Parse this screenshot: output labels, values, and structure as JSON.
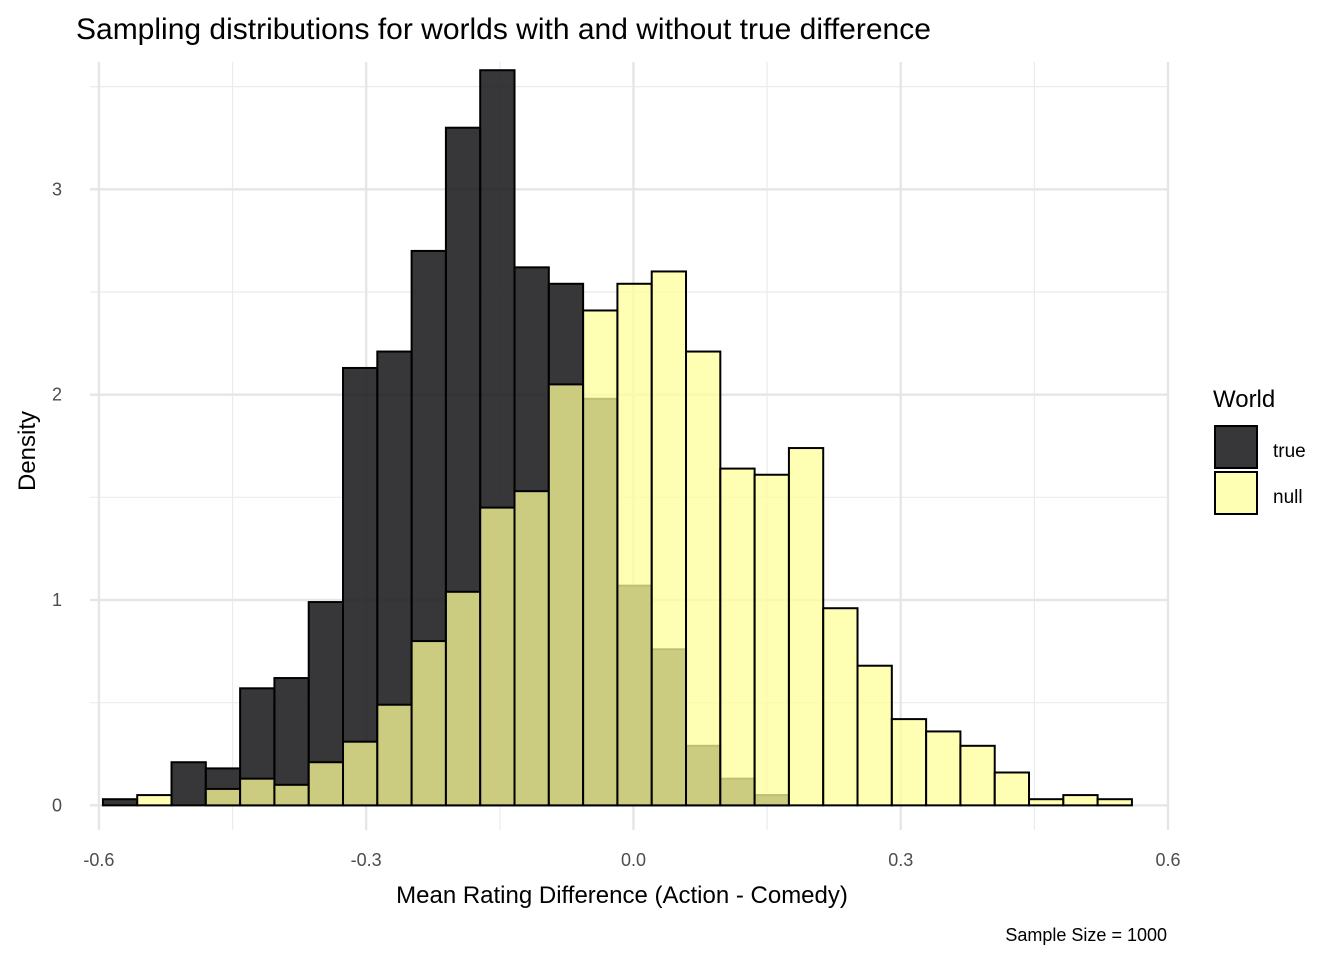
{
  "chart_data": {
    "type": "bar",
    "title": "Sampling distributions for worlds with and without true difference",
    "xlabel": "Mean Rating Difference (Action - Comedy)",
    "ylabel": "Density",
    "caption": "Sample Size = 1000",
    "xlim": [
      -0.61,
      0.6
    ],
    "ylim": [
      -0.12,
      3.62
    ],
    "x_ticks": [
      -0.6,
      -0.3,
      0.0,
      0.3,
      0.6
    ],
    "x_tick_labels": [
      "-0.6",
      "-0.3",
      "0.0",
      "0.3",
      "0.6"
    ],
    "y_ticks": [
      0,
      1,
      2,
      3
    ],
    "y_tick_labels": [
      "0",
      "1",
      "2",
      "3"
    ],
    "grid": true,
    "bin_width": 0.0385,
    "legend": {
      "title": "World",
      "position": "right",
      "entries": [
        {
          "label": "true",
          "color": "#1b1b1f"
        },
        {
          "label": "null",
          "color": "#ffff99"
        }
      ]
    },
    "bin_starts": [
      -0.5955,
      -0.557,
      -0.5185,
      -0.48,
      -0.4415,
      -0.403,
      -0.3645,
      -0.326,
      -0.2875,
      -0.249,
      -0.2105,
      -0.172,
      -0.1335,
      -0.095,
      -0.0565,
      -0.018,
      0.0205,
      0.059,
      0.0975,
      0.136,
      0.1745,
      0.213,
      0.2515,
      0.29,
      0.3285,
      0.367,
      0.4055,
      0.444,
      0.4825,
      0.521
    ],
    "series": [
      {
        "name": "true",
        "color": "#1b1b1f",
        "opacity": 0.88,
        "values": [
          0.03,
          0,
          0.21,
          0.18,
          0.57,
          0.62,
          0.99,
          2.13,
          2.21,
          2.7,
          3.3,
          3.58,
          2.62,
          2.54,
          1.98,
          1.07,
          0.76,
          0.29,
          0.13,
          0.05,
          0,
          0,
          0,
          0,
          0,
          0,
          0,
          0,
          0,
          0
        ]
      },
      {
        "name": "null",
        "color": "#ffff99",
        "opacity": 0.75,
        "values": [
          0,
          0.05,
          0,
          0.08,
          0.13,
          0.1,
          0.21,
          0.31,
          0.49,
          0.8,
          1.04,
          1.45,
          1.53,
          2.05,
          2.41,
          2.54,
          2.6,
          2.21,
          1.64,
          1.61,
          1.74,
          0.96,
          0.68,
          0.42,
          0.36,
          0.29,
          0.16,
          0.03,
          0.05,
          0.03
        ]
      }
    ]
  }
}
